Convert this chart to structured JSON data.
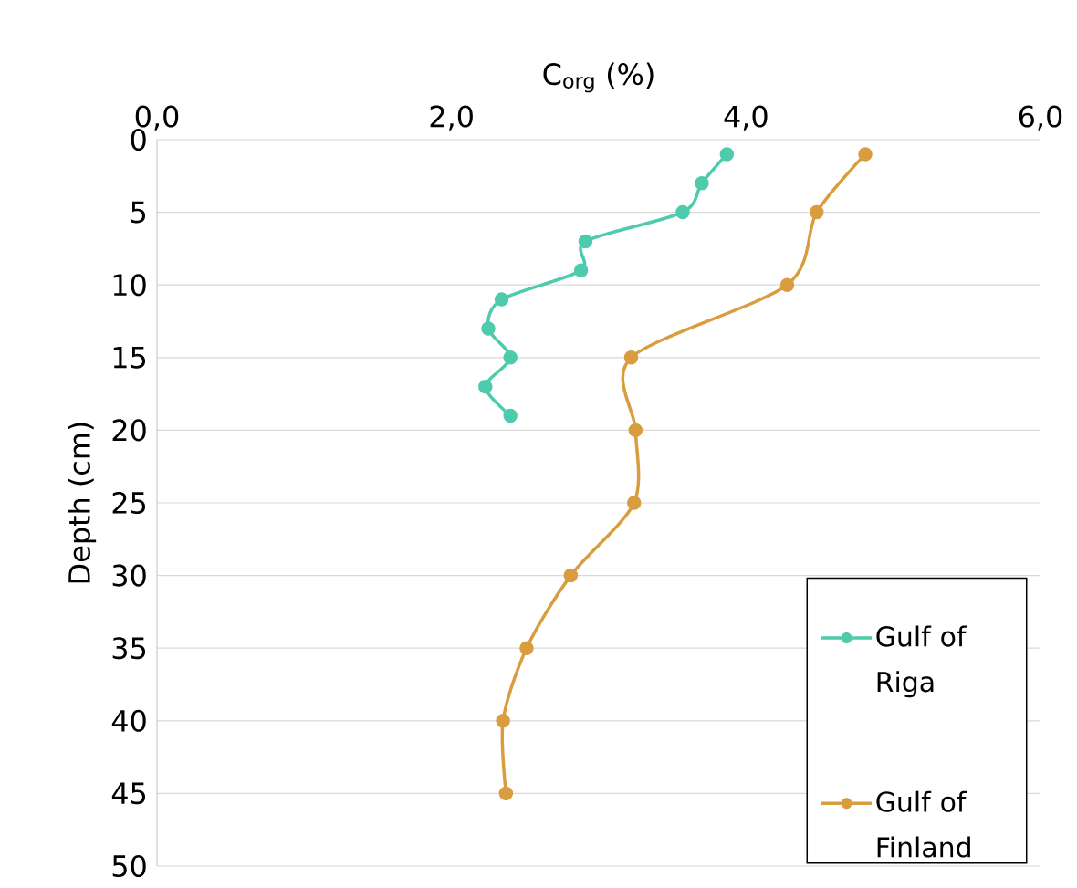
{
  "chart_data": {
    "type": "line",
    "xlabel": "C$_{org}$ (%)",
    "ylabel": "Depth (cm)",
    "xlim": [
      0,
      6
    ],
    "ylim": [
      50,
      0
    ],
    "xticks": [
      {
        "value": 0,
        "label": "0,0"
      },
      {
        "value": 2,
        "label": "2,0"
      },
      {
        "value": 4,
        "label": "4,0"
      },
      {
        "value": 6,
        "label": "6,0"
      }
    ],
    "yticks": [
      0,
      5,
      10,
      15,
      20,
      25,
      30,
      35,
      40,
      45,
      50
    ],
    "grid": "y",
    "legend": "bottom right",
    "marker": "circle",
    "series": [
      {
        "name": "Gulf of Riga",
        "color": "#4ecbad",
        "x": [
          3.87,
          3.7,
          3.57,
          2.91,
          2.88,
          2.34,
          2.25,
          2.4,
          2.23,
          2.4
        ],
        "values": [
          1,
          3,
          5,
          7,
          9,
          11,
          13,
          15,
          17,
          19
        ]
      },
      {
        "name": "Gulf of Finland",
        "color": "#d99c3f",
        "x": [
          4.81,
          4.48,
          4.28,
          3.22,
          3.25,
          3.24,
          2.81,
          2.51,
          2.35,
          2.37
        ],
        "values": [
          1,
          5,
          10,
          15,
          20,
          25,
          30,
          35,
          40,
          45
        ]
      }
    ]
  }
}
